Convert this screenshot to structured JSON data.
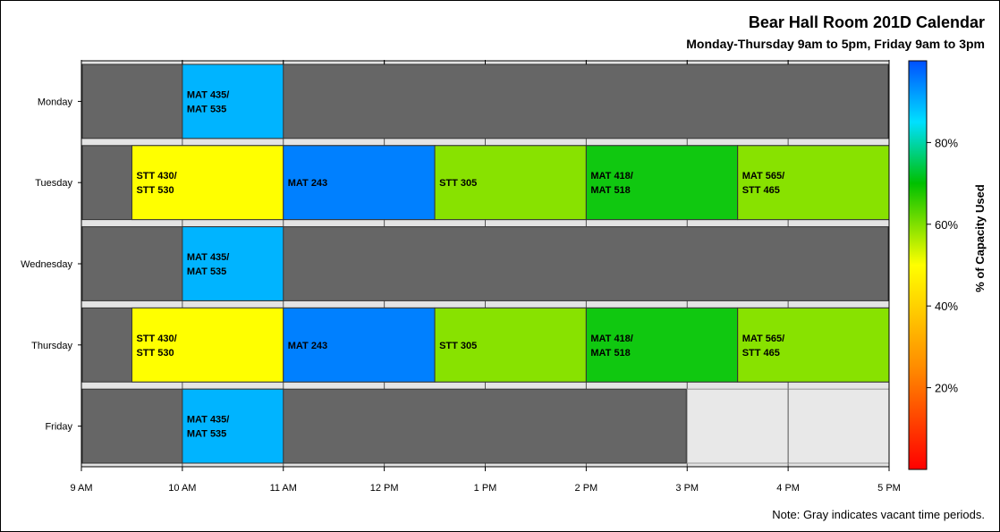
{
  "title": "Bear Hall Room 201D Calendar",
  "subtitle": "Monday-Thursday 9am to 5pm, Friday 9am to 3pm",
  "footnote": "Note: Gray indicates vacant time periods.",
  "colors": {
    "vacant": "#666666",
    "unavailable": "#e8e8e8",
    "band": "#e3e3e3"
  },
  "chart_data": {
    "type": "bar",
    "orientation": "horizontal-gantt",
    "x_unit": "hours",
    "x_ticks": [
      {
        "value": 9,
        "label": "9 AM"
      },
      {
        "value": 10,
        "label": "10 AM"
      },
      {
        "value": 11,
        "label": "11 AM"
      },
      {
        "value": 12,
        "label": "12 PM"
      },
      {
        "value": 13,
        "label": "1 PM"
      },
      {
        "value": 14,
        "label": "2 PM"
      },
      {
        "value": 15,
        "label": "3 PM"
      },
      {
        "value": 16,
        "label": "4 PM"
      },
      {
        "value": 17,
        "label": "5 PM"
      }
    ],
    "xlim": [
      9,
      17
    ],
    "categories": [
      "Monday",
      "Tuesday",
      "Wednesday",
      "Thursday",
      "Friday"
    ],
    "days": [
      {
        "day": "Monday",
        "open": [
          9,
          17
        ],
        "bookings": [
          {
            "start": 10,
            "end": 11,
            "lines": [
              "MAT 435/",
              "MAT 535"
            ],
            "color": "#00b4ff"
          }
        ]
      },
      {
        "day": "Tuesday",
        "open": [
          9,
          17
        ],
        "bookings": [
          {
            "start": 9.5,
            "end": 11,
            "lines": [
              "STT 430/",
              "STT 530"
            ],
            "color": "#ffff00"
          },
          {
            "start": 11,
            "end": 12.5,
            "lines": [
              "MAT 243"
            ],
            "color": "#0080ff"
          },
          {
            "start": 12.5,
            "end": 14,
            "lines": [
              "STT 305"
            ],
            "color": "#88e200"
          },
          {
            "start": 14,
            "end": 15.5,
            "lines": [
              "MAT 418/",
              "MAT 518"
            ],
            "color": "#10c810"
          },
          {
            "start": 15.5,
            "end": 17,
            "lines": [
              "MAT 565/",
              "STT 465"
            ],
            "color": "#88e200"
          }
        ]
      },
      {
        "day": "Wednesday",
        "open": [
          9,
          17
        ],
        "bookings": [
          {
            "start": 10,
            "end": 11,
            "lines": [
              "MAT 435/",
              "MAT 535"
            ],
            "color": "#00b4ff"
          }
        ]
      },
      {
        "day": "Thursday",
        "open": [
          9,
          17
        ],
        "bookings": [
          {
            "start": 9.5,
            "end": 11,
            "lines": [
              "STT 430/",
              "STT 530"
            ],
            "color": "#ffff00"
          },
          {
            "start": 11,
            "end": 12.5,
            "lines": [
              "MAT 243"
            ],
            "color": "#0080ff"
          },
          {
            "start": 12.5,
            "end": 14,
            "lines": [
              "STT 305"
            ],
            "color": "#88e200"
          },
          {
            "start": 14,
            "end": 15.5,
            "lines": [
              "MAT 418/",
              "MAT 518"
            ],
            "color": "#10c810"
          },
          {
            "start": 15.5,
            "end": 17,
            "lines": [
              "MAT 565/",
              "STT 465"
            ],
            "color": "#88e200"
          }
        ]
      },
      {
        "day": "Friday",
        "open": [
          9,
          15
        ],
        "bookings": [
          {
            "start": 10,
            "end": 11,
            "lines": [
              "MAT 435/",
              "MAT 535"
            ],
            "color": "#00b4ff"
          }
        ]
      }
    ],
    "colorbar": {
      "label": "% of Capacity Used",
      "range": [
        0,
        100
      ],
      "ticks": [
        {
          "value": 20,
          "label": "20%"
        },
        {
          "value": 40,
          "label": "40%"
        },
        {
          "value": 60,
          "label": "60%"
        },
        {
          "value": 80,
          "label": "80%"
        }
      ],
      "stops": [
        {
          "value": 0,
          "color": "#ff0000"
        },
        {
          "value": 25,
          "color": "#ff8c00"
        },
        {
          "value": 50,
          "color": "#ffff00"
        },
        {
          "value": 70,
          "color": "#00c000"
        },
        {
          "value": 85,
          "color": "#00e0ff"
        },
        {
          "value": 100,
          "color": "#0050ff"
        }
      ]
    },
    "grid": true
  }
}
